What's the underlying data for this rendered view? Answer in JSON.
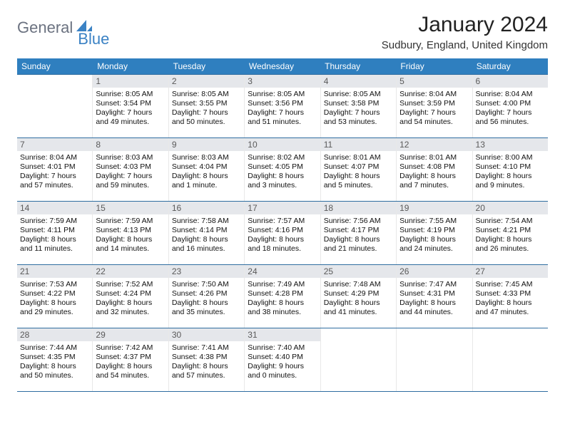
{
  "brand": {
    "g": "General",
    "b": "Blue"
  },
  "title": {
    "month": "January 2024",
    "location": "Sudbury, England, United Kingdom"
  },
  "colors": {
    "header_bg": "#2f7fbf",
    "row_border": "#2f6da0",
    "daynum_bg": "#e5e7eb",
    "logo_blue": "#3b82c4",
    "logo_gray": "#6b7280"
  },
  "daynames": [
    "Sunday",
    "Monday",
    "Tuesday",
    "Wednesday",
    "Thursday",
    "Friday",
    "Saturday"
  ],
  "weeks": [
    [
      null,
      {
        "n": "1",
        "sr": "8:05 AM",
        "ss": "3:54 PM",
        "dl": "7 hours and 49 minutes."
      },
      {
        "n": "2",
        "sr": "8:05 AM",
        "ss": "3:55 PM",
        "dl": "7 hours and 50 minutes."
      },
      {
        "n": "3",
        "sr": "8:05 AM",
        "ss": "3:56 PM",
        "dl": "7 hours and 51 minutes."
      },
      {
        "n": "4",
        "sr": "8:05 AM",
        "ss": "3:58 PM",
        "dl": "7 hours and 53 minutes."
      },
      {
        "n": "5",
        "sr": "8:04 AM",
        "ss": "3:59 PM",
        "dl": "7 hours and 54 minutes."
      },
      {
        "n": "6",
        "sr": "8:04 AM",
        "ss": "4:00 PM",
        "dl": "7 hours and 56 minutes."
      }
    ],
    [
      {
        "n": "7",
        "sr": "8:04 AM",
        "ss": "4:01 PM",
        "dl": "7 hours and 57 minutes."
      },
      {
        "n": "8",
        "sr": "8:03 AM",
        "ss": "4:03 PM",
        "dl": "7 hours and 59 minutes."
      },
      {
        "n": "9",
        "sr": "8:03 AM",
        "ss": "4:04 PM",
        "dl": "8 hours and 1 minute."
      },
      {
        "n": "10",
        "sr": "8:02 AM",
        "ss": "4:05 PM",
        "dl": "8 hours and 3 minutes."
      },
      {
        "n": "11",
        "sr": "8:01 AM",
        "ss": "4:07 PM",
        "dl": "8 hours and 5 minutes."
      },
      {
        "n": "12",
        "sr": "8:01 AM",
        "ss": "4:08 PM",
        "dl": "8 hours and 7 minutes."
      },
      {
        "n": "13",
        "sr": "8:00 AM",
        "ss": "4:10 PM",
        "dl": "8 hours and 9 minutes."
      }
    ],
    [
      {
        "n": "14",
        "sr": "7:59 AM",
        "ss": "4:11 PM",
        "dl": "8 hours and 11 minutes."
      },
      {
        "n": "15",
        "sr": "7:59 AM",
        "ss": "4:13 PM",
        "dl": "8 hours and 14 minutes."
      },
      {
        "n": "16",
        "sr": "7:58 AM",
        "ss": "4:14 PM",
        "dl": "8 hours and 16 minutes."
      },
      {
        "n": "17",
        "sr": "7:57 AM",
        "ss": "4:16 PM",
        "dl": "8 hours and 18 minutes."
      },
      {
        "n": "18",
        "sr": "7:56 AM",
        "ss": "4:17 PM",
        "dl": "8 hours and 21 minutes."
      },
      {
        "n": "19",
        "sr": "7:55 AM",
        "ss": "4:19 PM",
        "dl": "8 hours and 24 minutes."
      },
      {
        "n": "20",
        "sr": "7:54 AM",
        "ss": "4:21 PM",
        "dl": "8 hours and 26 minutes."
      }
    ],
    [
      {
        "n": "21",
        "sr": "7:53 AM",
        "ss": "4:22 PM",
        "dl": "8 hours and 29 minutes."
      },
      {
        "n": "22",
        "sr": "7:52 AM",
        "ss": "4:24 PM",
        "dl": "8 hours and 32 minutes."
      },
      {
        "n": "23",
        "sr": "7:50 AM",
        "ss": "4:26 PM",
        "dl": "8 hours and 35 minutes."
      },
      {
        "n": "24",
        "sr": "7:49 AM",
        "ss": "4:28 PM",
        "dl": "8 hours and 38 minutes."
      },
      {
        "n": "25",
        "sr": "7:48 AM",
        "ss": "4:29 PM",
        "dl": "8 hours and 41 minutes."
      },
      {
        "n": "26",
        "sr": "7:47 AM",
        "ss": "4:31 PM",
        "dl": "8 hours and 44 minutes."
      },
      {
        "n": "27",
        "sr": "7:45 AM",
        "ss": "4:33 PM",
        "dl": "8 hours and 47 minutes."
      }
    ],
    [
      {
        "n": "28",
        "sr": "7:44 AM",
        "ss": "4:35 PM",
        "dl": "8 hours and 50 minutes."
      },
      {
        "n": "29",
        "sr": "7:42 AM",
        "ss": "4:37 PM",
        "dl": "8 hours and 54 minutes."
      },
      {
        "n": "30",
        "sr": "7:41 AM",
        "ss": "4:38 PM",
        "dl": "8 hours and 57 minutes."
      },
      {
        "n": "31",
        "sr": "7:40 AM",
        "ss": "4:40 PM",
        "dl": "9 hours and 0 minutes."
      },
      null,
      null,
      null
    ]
  ],
  "labels": {
    "sunrise": "Sunrise: ",
    "sunset": "Sunset: ",
    "daylight": "Daylight: "
  }
}
